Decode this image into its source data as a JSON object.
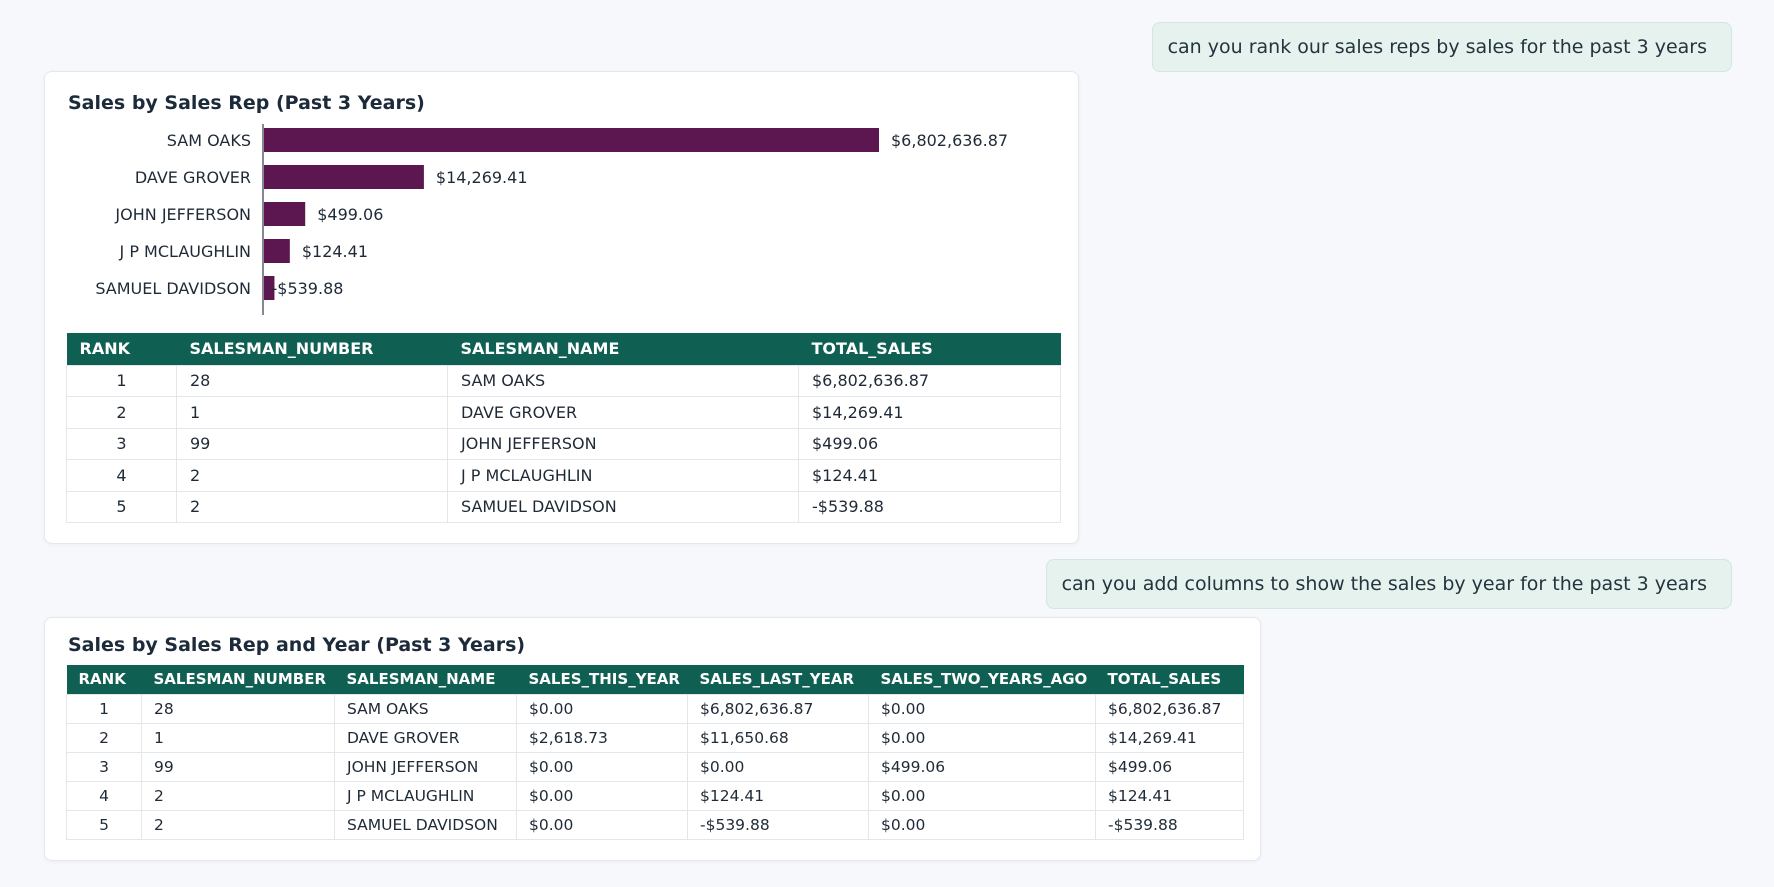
{
  "messages": {
    "first": "can you rank our sales reps by sales for the past 3 years",
    "second": "can you add columns to show the sales by year for the past 3 years"
  },
  "colors": {
    "bar": "#5c1650",
    "table_header": "#0f5f52",
    "user_bubble": "#e6f2ee"
  },
  "card1": {
    "title": "Sales by Sales Rep (Past 3 Years)",
    "columns": [
      "RANK",
      "SALESMAN_NUMBER",
      "SALESMAN_NAME",
      "TOTAL_SALES"
    ],
    "rows": [
      [
        "1",
        "28",
        "SAM OAKS",
        "$6,802,636.87"
      ],
      [
        "2",
        "1",
        "DAVE GROVER",
        "$14,269.41"
      ],
      [
        "3",
        "99",
        "JOHN JEFFERSON",
        "$499.06"
      ],
      [
        "4",
        "2",
        "J P MCLAUGHLIN",
        "$124.41"
      ],
      [
        "5",
        "2",
        "SAMUEL DAVIDSON",
        "-$539.88"
      ]
    ]
  },
  "chart_data": {
    "type": "bar",
    "orientation": "horizontal",
    "title": "Sales by Sales Rep (Past 3 Years)",
    "categories": [
      "SAM OAKS",
      "DAVE GROVER",
      "JOHN JEFFERSON",
      "J P MCLAUGHLIN",
      "SAMUEL DAVIDSON"
    ],
    "values": [
      6802636.87,
      14269.41,
      499.06,
      124.41,
      -539.88
    ],
    "value_labels": [
      "$6,802,636.87",
      "$14,269.41",
      "$499.06",
      "$124.41",
      "-$539.88"
    ],
    "display_scale": "non-linear (bar lengths not proportional to values)",
    "display_fractions": [
      1.0,
      0.26,
      0.067,
      0.042,
      0.017
    ],
    "grid": false,
    "legend": "none"
  },
  "card2": {
    "title": "Sales by Sales Rep and Year (Past 3 Years)",
    "columns": [
      "RANK",
      "SALESMAN_NUMBER",
      "SALESMAN_NAME",
      "SALES_THIS_YEAR",
      "SALES_LAST_YEAR",
      "SALES_TWO_YEARS_AGO",
      "TOTAL_SALES"
    ],
    "rows": [
      [
        "1",
        "28",
        "SAM OAKS",
        "$0.00",
        "$6,802,636.87",
        "$0.00",
        "$6,802,636.87"
      ],
      [
        "2",
        "1",
        "DAVE GROVER",
        "$2,618.73",
        "$11,650.68",
        "$0.00",
        "$14,269.41"
      ],
      [
        "3",
        "99",
        "JOHN JEFFERSON",
        "$0.00",
        "$0.00",
        "$499.06",
        "$499.06"
      ],
      [
        "4",
        "2",
        "J P MCLAUGHLIN",
        "$0.00",
        "$124.41",
        "$0.00",
        "$124.41"
      ],
      [
        "5",
        "2",
        "SAMUEL DAVIDSON",
        "$0.00",
        "-$539.88",
        "$0.00",
        "-$539.88"
      ]
    ]
  }
}
